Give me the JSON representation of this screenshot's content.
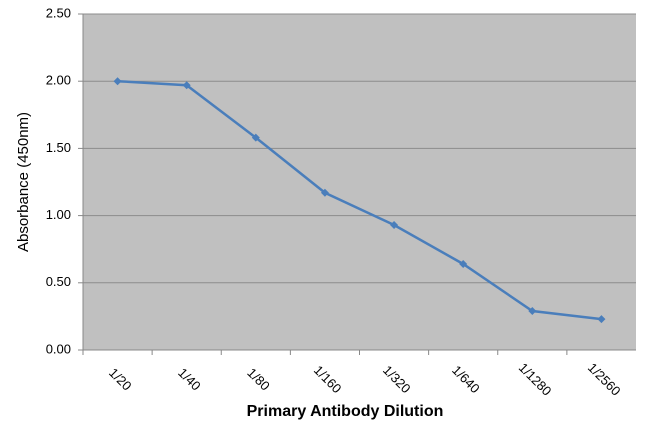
{
  "chart_data": {
    "type": "line",
    "x_label": "Primary Antibody Dilution",
    "y_label": "Absorbance (450nm)",
    "categories": [
      "1/20",
      "1/40",
      "1/80",
      "1/160",
      "1/320",
      "1/640",
      "1/1280",
      "1/2560"
    ],
    "values": [
      2.0,
      1.97,
      1.58,
      1.17,
      0.93,
      0.64,
      0.29,
      0.23
    ],
    "color": "#4a7ebb",
    "ylim": [
      0,
      2.5
    ],
    "yticks": [
      {
        "value": 0,
        "label": "0.00"
      },
      {
        "value": 0.5,
        "label": "0.50"
      },
      {
        "value": 1,
        "label": "1.00"
      },
      {
        "value": 1.5,
        "label": "1.50"
      },
      {
        "value": 2,
        "label": "2.00"
      },
      {
        "value": 2.5,
        "label": "2.50"
      }
    ],
    "grid": true
  }
}
